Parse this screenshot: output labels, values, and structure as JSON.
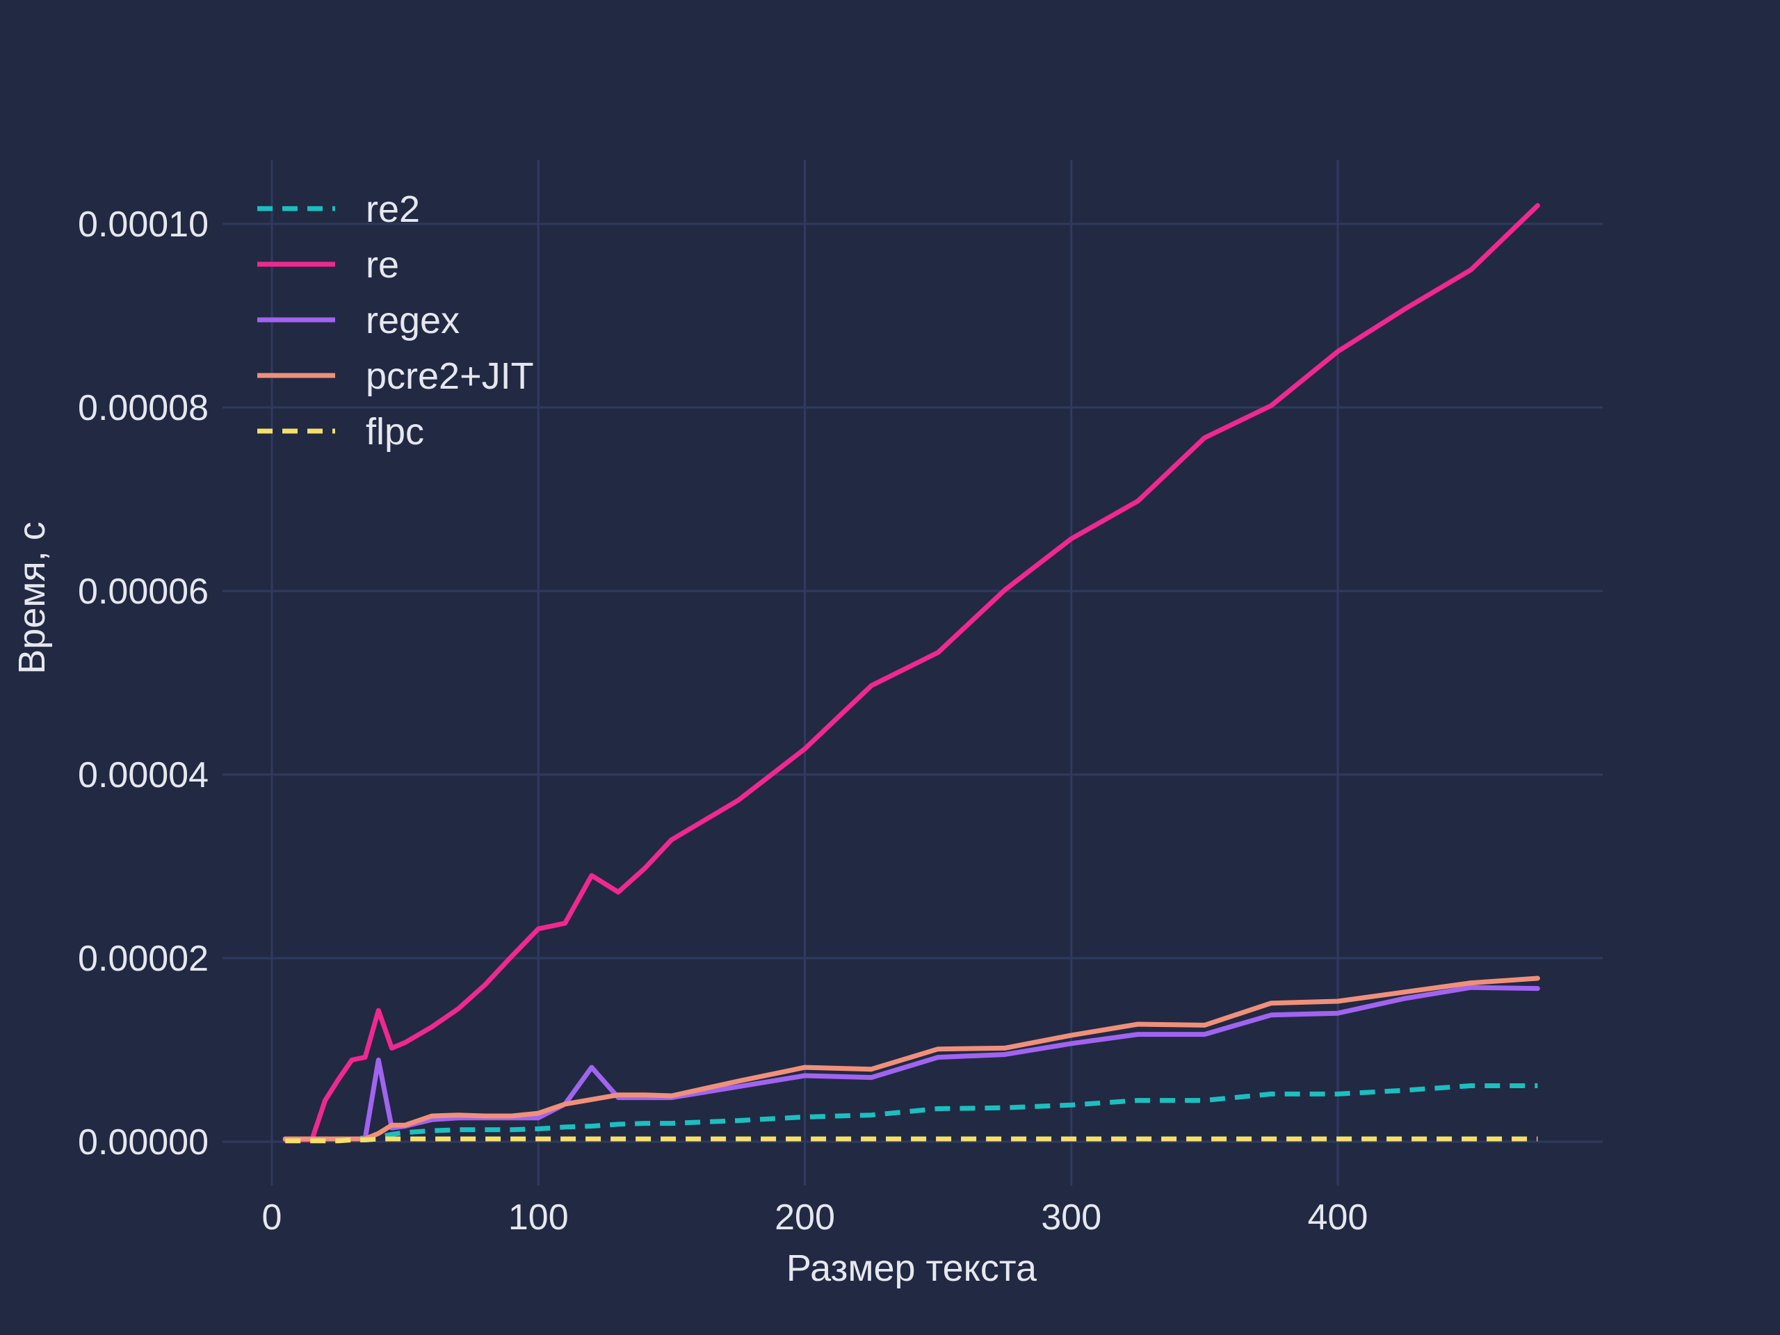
{
  "chart_data": {
    "type": "line",
    "title": "",
    "xlabel": "Размер текста",
    "ylabel": "Время, с",
    "xlim": [
      -10,
      500
    ],
    "ylim": [
      -4e-06,
      0.000107
    ],
    "xticks": [
      0,
      100,
      200,
      300,
      400
    ],
    "xtick_labels": [
      "0",
      "100",
      "200",
      "300",
      "400"
    ],
    "yticks": [
      0.0,
      2e-05,
      4e-05,
      6e-05,
      8e-05,
      0.0001
    ],
    "ytick_labels": [
      "0.00000",
      "0.00002",
      "0.00004",
      "0.00006",
      "0.00008",
      "0.00010"
    ],
    "grid": true,
    "legend_position": "top-left",
    "background_color": "#222943",
    "grid_color": "#2f3a5e",
    "x": [
      5,
      10,
      15,
      20,
      25,
      30,
      35,
      40,
      45,
      50,
      60,
      70,
      80,
      90,
      100,
      110,
      120,
      130,
      140,
      150,
      175,
      200,
      225,
      250,
      275,
      300,
      325,
      350,
      375,
      400,
      425,
      450,
      475
    ],
    "series": [
      {
        "name": "re2",
        "color": "#1bbfbf",
        "dash": true,
        "values": [
          2e-07,
          2e-07,
          2e-07,
          3e-07,
          3e-07,
          3e-07,
          4e-07,
          5e-07,
          8e-07,
          1e-06,
          1.2e-06,
          1.3e-06,
          1.3e-06,
          1.3e-06,
          1.4e-06,
          1.6e-06,
          1.7e-06,
          1.9e-06,
          2e-06,
          2e-06,
          2.3e-06,
          2.7e-06,
          2.9e-06,
          3.6e-06,
          3.7e-06,
          4e-06,
          4.5e-06,
          4.5e-06,
          5.2e-06,
          5.2e-06,
          5.6e-06,
          6.1e-06,
          6.1e-06
        ]
      },
      {
        "name": "re",
        "color": "#f0288f",
        "dash": false,
        "values": [
          2e-07,
          2e-07,
          2e-07,
          4.5e-06,
          6.8e-06,
          8.9e-06,
          9.2e-06,
          1.43e-05,
          1.02e-05,
          1.08e-05,
          1.25e-05,
          1.45e-05,
          1.71e-05,
          2.02e-05,
          2.32e-05,
          2.38e-05,
          2.9e-05,
          2.72e-05,
          2.98e-05,
          3.29e-05,
          3.72e-05,
          4.28e-05,
          4.97e-05,
          5.33e-05,
          6.01e-05,
          6.57e-05,
          6.98e-05,
          7.67e-05,
          8.02e-05,
          8.61e-05,
          9.07e-05,
          9.5e-05,
          0.000102
        ]
      },
      {
        "name": "regex",
        "color": "#a064f0",
        "dash": false,
        "values": [
          3e-07,
          3e-07,
          3e-07,
          3e-07,
          3e-07,
          3e-07,
          3e-07,
          8.9e-06,
          1.5e-06,
          1.7e-06,
          2.4e-06,
          2.6e-06,
          2.6e-06,
          2.6e-06,
          2.6e-06,
          4.1e-06,
          8.1e-06,
          4.8e-06,
          4.8e-06,
          4.8e-06,
          6e-06,
          7.2e-06,
          7e-06,
          9.2e-06,
          9.5e-06,
          1.07e-05,
          1.17e-05,
          1.17e-05,
          1.38e-05,
          1.4e-05,
          1.56e-05,
          1.68e-05,
          1.67e-05
        ]
      },
      {
        "name": "pcre2+JIT",
        "color": "#f0907a",
        "dash": false,
        "values": [
          3e-07,
          3e-07,
          3e-07,
          3e-07,
          3e-07,
          3e-07,
          3e-07,
          9e-07,
          1.8e-06,
          1.8e-06,
          2.8e-06,
          2.9e-06,
          2.8e-06,
          2.8e-06,
          3.1e-06,
          4.1e-06,
          4.6e-06,
          5.1e-06,
          5.1e-06,
          5e-06,
          6.6e-06,
          8.1e-06,
          7.9e-06,
          1.01e-05,
          1.02e-05,
          1.16e-05,
          1.28e-05,
          1.27e-05,
          1.51e-05,
          1.53e-05,
          1.63e-05,
          1.73e-05,
          1.78e-05
        ]
      },
      {
        "name": "flpc",
        "color": "#f4e06a",
        "dash": true,
        "values": [
          1e-07,
          1e-07,
          1e-07,
          1e-07,
          1e-07,
          2e-07,
          2e-07,
          3e-07,
          3e-07,
          3e-07,
          3e-07,
          3e-07,
          3e-07,
          3e-07,
          3e-07,
          3e-07,
          3e-07,
          3e-07,
          3e-07,
          3e-07,
          3e-07,
          3e-07,
          3e-07,
          3e-07,
          3e-07,
          3e-07,
          3e-07,
          3e-07,
          3e-07,
          3e-07,
          3e-07,
          3e-07,
          3e-07
        ]
      }
    ]
  }
}
